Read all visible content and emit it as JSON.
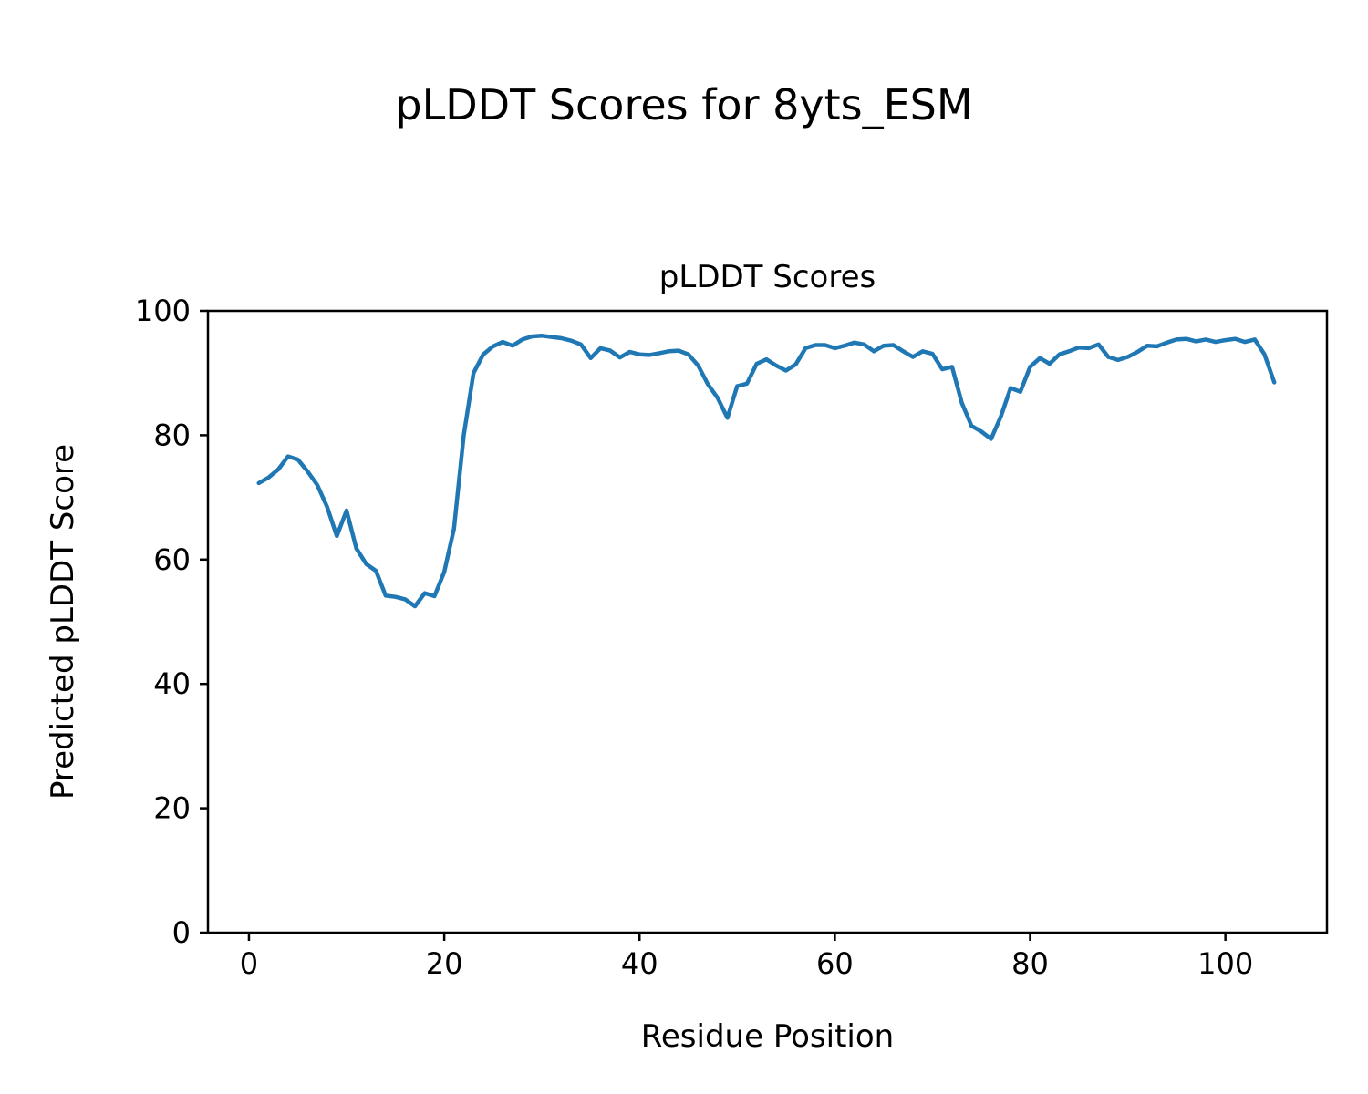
{
  "figure": {
    "title": "pLDDT Scores for 8yts_ESM"
  },
  "chart_data": {
    "type": "line",
    "title": "pLDDT Scores",
    "xlabel": "Residue Position",
    "ylabel": "Predicted pLDDT Score",
    "xlim": [
      -4.2,
      110.4
    ],
    "ylim": [
      0,
      100
    ],
    "xticks": [
      0,
      20,
      40,
      60,
      80,
      100
    ],
    "yticks": [
      0,
      20,
      40,
      60,
      80,
      100
    ],
    "grid": false,
    "legend": "none",
    "line_color": "#1f77b4",
    "line_width": 4.5,
    "x": [
      1,
      2,
      3,
      4,
      5,
      6,
      7,
      8,
      9,
      10,
      11,
      12,
      13,
      14,
      15,
      16,
      17,
      18,
      19,
      20,
      21,
      22,
      23,
      24,
      25,
      26,
      27,
      28,
      29,
      30,
      31,
      32,
      33,
      34,
      35,
      36,
      37,
      38,
      39,
      40,
      41,
      42,
      43,
      44,
      45,
      46,
      47,
      48,
      49,
      50,
      51,
      52,
      53,
      54,
      55,
      56,
      57,
      58,
      59,
      60,
      61,
      62,
      63,
      64,
      65,
      66,
      67,
      68,
      69,
      70,
      71,
      72,
      73,
      74,
      75,
      76,
      77,
      78,
      79,
      80,
      81,
      82,
      83,
      84,
      85,
      86,
      87,
      88,
      89,
      90,
      91,
      92,
      93,
      94,
      95,
      96,
      97,
      98,
      99,
      100,
      101,
      102,
      103,
      104,
      105
    ],
    "y": [
      72.3,
      73.2,
      74.5,
      76.6,
      76.1,
      74.2,
      72.0,
      68.5,
      63.8,
      67.9,
      61.8,
      59.3,
      58.2,
      54.2,
      54.0,
      53.6,
      52.5,
      54.6,
      54.1,
      58.0,
      65.0,
      80.0,
      90.0,
      93.0,
      94.3,
      95.0,
      94.4,
      95.4,
      95.9,
      96.0,
      95.8,
      95.6,
      95.2,
      94.6,
      92.4,
      94.0,
      93.6,
      92.5,
      93.4,
      93.0,
      92.9,
      93.2,
      93.5,
      93.6,
      93.0,
      91.2,
      88.2,
      86.0,
      82.8,
      87.9,
      88.3,
      91.5,
      92.2,
      91.2,
      90.4,
      91.4,
      94.0,
      94.5,
      94.5,
      94.0,
      94.4,
      94.9,
      94.6,
      93.5,
      94.4,
      94.5,
      93.5,
      92.6,
      93.5,
      93.1,
      90.6,
      91.0,
      85.2,
      81.5,
      80.6,
      79.4,
      83.0,
      87.6,
      87.0,
      91.0,
      92.4,
      91.5,
      93.0,
      93.5,
      94.1,
      94.0,
      94.6,
      92.6,
      92.1,
      92.6,
      93.4,
      94.4,
      94.3,
      94.9,
      95.4,
      95.5,
      95.1,
      95.4,
      95.0,
      95.3,
      95.5,
      95.0,
      95.4,
      93.0,
      88.5
    ]
  }
}
